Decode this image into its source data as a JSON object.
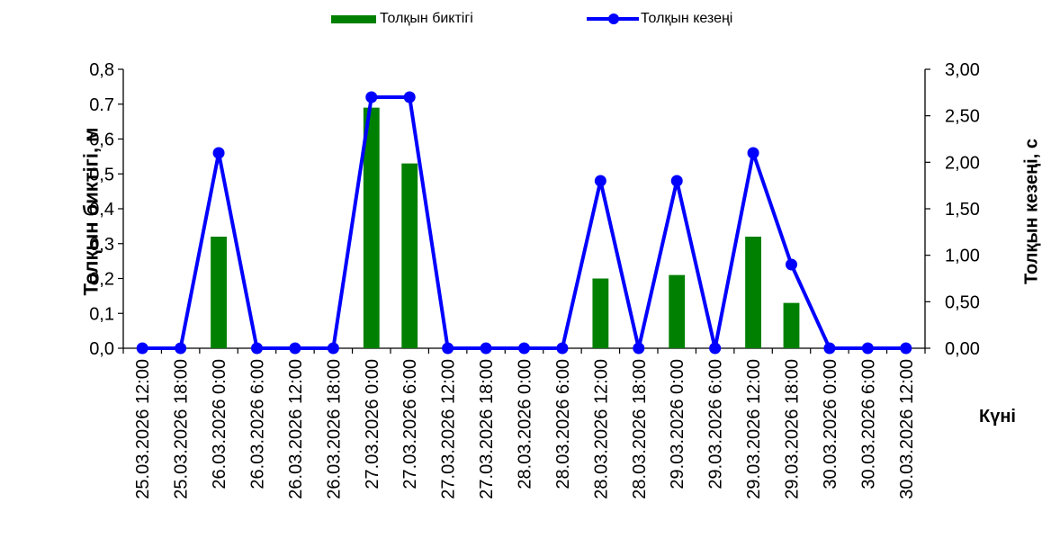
{
  "legend": {
    "bar_label": "Толқын биктігі",
    "line_label": "Толқын кезеңі"
  },
  "axes": {
    "left_title": "Толқын биктігі, м",
    "right_title": "Толқын кезеңі, с",
    "x_title": "Күні"
  },
  "colors": {
    "bar": "#008000",
    "line": "#0000ff"
  },
  "chart_data": {
    "type": "bar",
    "categories": [
      "25.03.2026 12:00",
      "25.03.2026 18:00",
      "26.03.2026 0:00",
      "26.03.2026 6:00",
      "26.03.2026 12:00",
      "26.03.2026 18:00",
      "27.03.2026 0:00",
      "27.03.2026 6:00",
      "27.03.2026 12:00",
      "27.03.2026 18:00",
      "28.03.2026 0:00",
      "28.03.2026 6:00",
      "28.03.2026 12:00",
      "28.03.2026 18:00",
      "29.03.2026 0:00",
      "29.03.2026 6:00",
      "29.03.2026 12:00",
      "29.03.2026 18:00",
      "30.03.2026 0:00",
      "30.03.2026 6:00",
      "30.03.2026 12:00"
    ],
    "series": [
      {
        "name": "Толқын биктігі",
        "type": "bar",
        "axis": "left",
        "values": [
          0,
          0,
          0.32,
          0,
          0,
          0,
          0.69,
          0.53,
          0,
          0,
          0,
          0,
          0.2,
          0,
          0.21,
          0,
          0.32,
          0.13,
          0,
          0,
          0
        ]
      },
      {
        "name": "Толқын кезеңі",
        "type": "line",
        "axis": "right",
        "values": [
          0,
          0,
          2.1,
          0,
          0,
          0,
          2.7,
          2.7,
          0,
          0,
          0,
          0,
          1.8,
          0,
          1.8,
          0,
          2.1,
          0.9,
          0,
          0,
          0
        ]
      }
    ],
    "y_left": {
      "lim": [
        0,
        0.8
      ],
      "ticks": [
        0,
        0.1,
        0.2,
        0.3,
        0.4,
        0.5,
        0.6,
        0.7,
        0.8
      ],
      "tick_labels": [
        "0,0",
        "0,1",
        "0,2",
        "0,3",
        "0,4",
        "0,5",
        "0,6",
        "0.7",
        "0,8"
      ]
    },
    "y_right": {
      "lim": [
        0,
        3
      ],
      "ticks": [
        0,
        0.5,
        1,
        1.5,
        2,
        2.5,
        3
      ],
      "tick_labels": [
        "0,00",
        "0,50",
        "1,00",
        "1,50",
        "2,00",
        "2,50",
        "3,00"
      ]
    },
    "grid": false,
    "legend_position": "top"
  }
}
